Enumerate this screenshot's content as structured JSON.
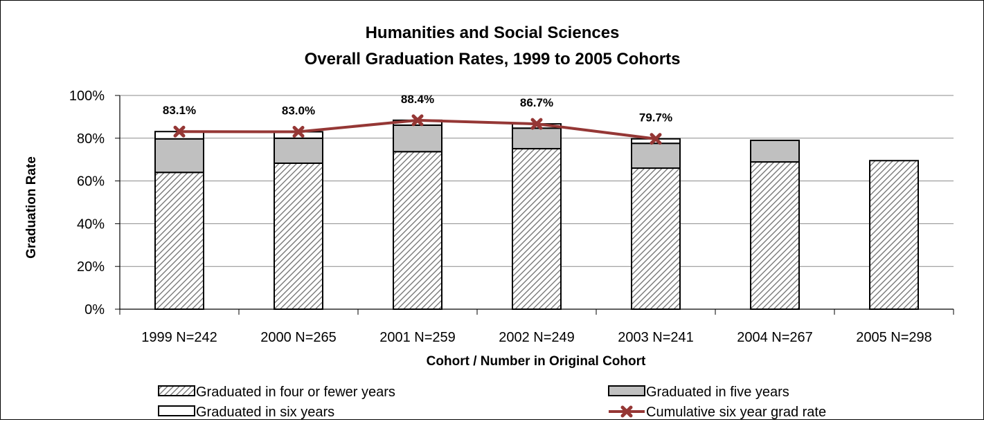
{
  "chart_data": {
    "type": "bar",
    "stacked": true,
    "title": "Humanities and Social Sciences",
    "subtitle": "Overall Graduation Rates, 1999 to 2005 Cohorts",
    "xlabel": "Cohort / Number in Original Cohort",
    "ylabel": "Graduation Rate",
    "categories": [
      "1999 N=242",
      "2000 N=265",
      "2001 N=259",
      "2002 N=249",
      "2003 N=241",
      "2004 N=267",
      "2005 N=298"
    ],
    "ylim": [
      0,
      100
    ],
    "yticks": [
      0,
      20,
      40,
      60,
      80,
      100
    ],
    "ytick_labels": [
      "0%",
      "20%",
      "40%",
      "60%",
      "80%",
      "100%"
    ],
    "grid": true,
    "legend_position": "bottom",
    "series": [
      {
        "name": "Graduated in four or fewer years",
        "kind": "bar",
        "fill": "hatched",
        "color": "#c8c8c8",
        "values": [
          64.0,
          68.3,
          73.7,
          75.1,
          66.0,
          68.9,
          69.5
        ]
      },
      {
        "name": "Graduated in five years",
        "kind": "bar",
        "fill": "solid",
        "color": "#c0c0c0",
        "values": [
          15.7,
          11.7,
          12.4,
          9.6,
          11.6,
          10.1,
          null
        ]
      },
      {
        "name": "Graduated in six years",
        "kind": "bar",
        "fill": "solid",
        "color": "#ffffff",
        "values": [
          3.4,
          3.0,
          2.3,
          2.0,
          2.1,
          null,
          null
        ]
      },
      {
        "name": "Cumulative six year grad rate",
        "kind": "line",
        "color": "#953735",
        "values": [
          83.1,
          83.0,
          88.4,
          86.7,
          79.7,
          null,
          null
        ],
        "labels": [
          "83.1%",
          "83.0%",
          "88.4%",
          "86.7%",
          "79.7%",
          null,
          null
        ]
      }
    ]
  }
}
